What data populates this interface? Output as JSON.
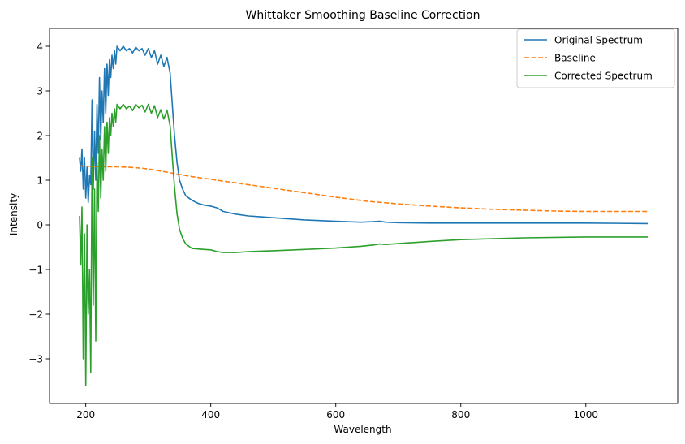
{
  "chart_data": {
    "type": "line",
    "title": "Whittaker Smoothing Baseline Correction",
    "xlabel": "Wavelength",
    "ylabel": "Intensity",
    "xlim": [
      142,
      1147
    ],
    "ylim": [
      -4.0,
      4.4
    ],
    "xticks": [
      200,
      400,
      600,
      800,
      1000
    ],
    "yticks": [
      -3,
      -2,
      -1,
      0,
      1,
      2,
      3,
      4
    ],
    "grid": false,
    "legend_position": "upper right",
    "series": [
      {
        "name": "Original Spectrum",
        "color": "#1f77b4",
        "dash": "solid",
        "x": [
          190,
          192,
          194,
          196,
          198,
          200,
          202,
          204,
          206,
          208,
          210,
          212,
          214,
          216,
          218,
          220,
          222,
          224,
          226,
          228,
          230,
          232,
          234,
          236,
          238,
          240,
          242,
          244,
          246,
          248,
          250,
          255,
          260,
          265,
          270,
          275,
          280,
          285,
          290,
          295,
          300,
          305,
          310,
          315,
          320,
          325,
          330,
          335,
          338,
          342,
          346,
          350,
          355,
          360,
          370,
          380,
          390,
          400,
          410,
          420,
          440,
          460,
          480,
          500,
          550,
          600,
          640,
          660,
          670,
          680,
          700,
          750,
          800,
          900,
          1000,
          1100
        ],
        "y": [
          1.5,
          1.2,
          1.7,
          0.8,
          1.5,
          0.6,
          1.3,
          0.5,
          1.1,
          0.9,
          2.8,
          0.8,
          2.1,
          1.0,
          2.7,
          1.6,
          3.3,
          1.9,
          3.0,
          2.3,
          3.5,
          2.5,
          3.6,
          2.9,
          3.7,
          3.3,
          3.8,
          3.5,
          3.9,
          3.6,
          4.0,
          3.9,
          4.0,
          3.9,
          3.95,
          3.85,
          3.98,
          3.9,
          3.95,
          3.8,
          3.95,
          3.75,
          3.9,
          3.6,
          3.8,
          3.55,
          3.75,
          3.4,
          2.8,
          2.0,
          1.4,
          1.0,
          0.8,
          0.65,
          0.55,
          0.48,
          0.44,
          0.42,
          0.38,
          0.3,
          0.24,
          0.2,
          0.18,
          0.16,
          0.11,
          0.08,
          0.06,
          0.07,
          0.08,
          0.06,
          0.05,
          0.04,
          0.04,
          0.04,
          0.04,
          0.03
        ]
      },
      {
        "name": "Baseline",
        "color": "#ff7f0e",
        "dash": "dashed",
        "x": [
          190,
          210,
          230,
          250,
          270,
          290,
          310,
          330,
          350,
          370,
          400,
          450,
          500,
          550,
          600,
          650,
          700,
          750,
          800,
          850,
          900,
          950,
          1000,
          1050,
          1100
        ],
        "y": [
          1.32,
          1.31,
          1.3,
          1.3,
          1.29,
          1.27,
          1.23,
          1.18,
          1.13,
          1.08,
          1.02,
          0.92,
          0.82,
          0.72,
          0.62,
          0.53,
          0.47,
          0.42,
          0.38,
          0.35,
          0.33,
          0.31,
          0.3,
          0.3,
          0.3
        ]
      },
      {
        "name": "Corrected Spectrum",
        "color": "#2ca02c",
        "dash": "solid",
        "x": [
          190,
          192,
          194,
          196,
          198,
          200,
          202,
          204,
          206,
          208,
          210,
          212,
          214,
          216,
          218,
          220,
          222,
          224,
          226,
          228,
          230,
          232,
          234,
          236,
          238,
          240,
          242,
          244,
          246,
          248,
          250,
          255,
          260,
          265,
          270,
          275,
          280,
          285,
          290,
          295,
          300,
          305,
          310,
          315,
          320,
          325,
          330,
          335,
          338,
          342,
          346,
          350,
          355,
          360,
          370,
          380,
          390,
          400,
          410,
          420,
          440,
          460,
          480,
          500,
          550,
          600,
          640,
          660,
          670,
          680,
          700,
          750,
          800,
          900,
          1000,
          1100
        ],
        "y": [
          0.2,
          -0.9,
          0.4,
          -3.0,
          -0.2,
          -3.6,
          0.0,
          -2.0,
          -1.0,
          -3.3,
          1.5,
          -1.8,
          0.8,
          -2.6,
          1.4,
          0.3,
          2.0,
          0.6,
          1.7,
          1.0,
          2.2,
          1.2,
          2.3,
          1.6,
          2.4,
          2.0,
          2.5,
          2.2,
          2.6,
          2.3,
          2.7,
          2.6,
          2.7,
          2.6,
          2.66,
          2.56,
          2.7,
          2.62,
          2.68,
          2.53,
          2.7,
          2.5,
          2.67,
          2.4,
          2.58,
          2.37,
          2.57,
          2.22,
          1.62,
          0.85,
          0.25,
          -0.1,
          -0.3,
          -0.43,
          -0.53,
          -0.54,
          -0.55,
          -0.56,
          -0.6,
          -0.62,
          -0.62,
          -0.6,
          -0.59,
          -0.58,
          -0.55,
          -0.52,
          -0.48,
          -0.45,
          -0.43,
          -0.44,
          -0.42,
          -0.37,
          -0.33,
          -0.29,
          -0.27,
          -0.27
        ]
      }
    ]
  }
}
